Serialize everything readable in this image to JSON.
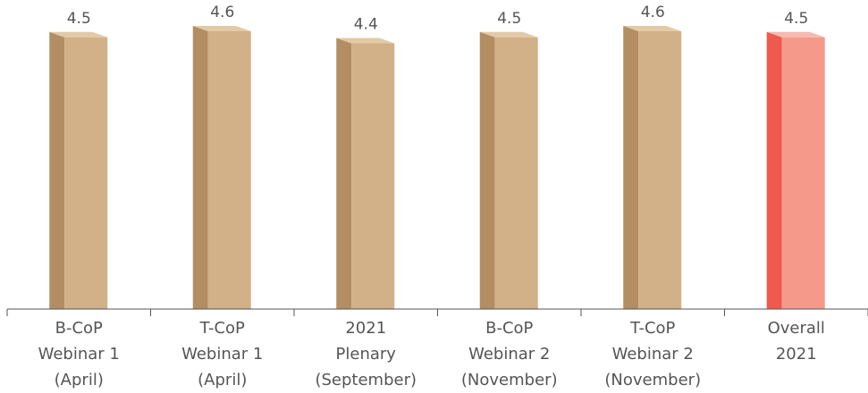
{
  "chart_data": {
    "type": "bar",
    "title": "",
    "xlabel": "",
    "ylabel": "",
    "ylim": [
      0,
      4.6
    ],
    "grid": false,
    "legend": "none",
    "categories": [
      [
        "B-CoP",
        "Webinar 1",
        "(April)"
      ],
      [
        "T-CoP",
        "Webinar 1",
        "(April)"
      ],
      [
        "2021",
        "Plenary",
        "(September)"
      ],
      [
        "B-CoP",
        "Webinar 2",
        "(November)"
      ],
      [
        "T-CoP",
        "Webinar 2",
        "(November)"
      ],
      [
        "Overall",
        "2021"
      ]
    ],
    "values": [
      4.5,
      4.6,
      4.4,
      4.5,
      4.6,
      4.5
    ],
    "value_labels": [
      "4.5",
      "4.6",
      "4.4",
      "4.5",
      "4.6",
      "4.5"
    ],
    "colors": {
      "bar_front": "#D2B088",
      "bar_side": "#B28E62",
      "bar_top": "#E3CAA6",
      "highlight_front": "#F59A8A",
      "highlight_side": "#EE5A4D",
      "highlight_top": "#F8B9AE",
      "axis": "#555555",
      "text": "#555555"
    },
    "highlight_index": 5
  }
}
